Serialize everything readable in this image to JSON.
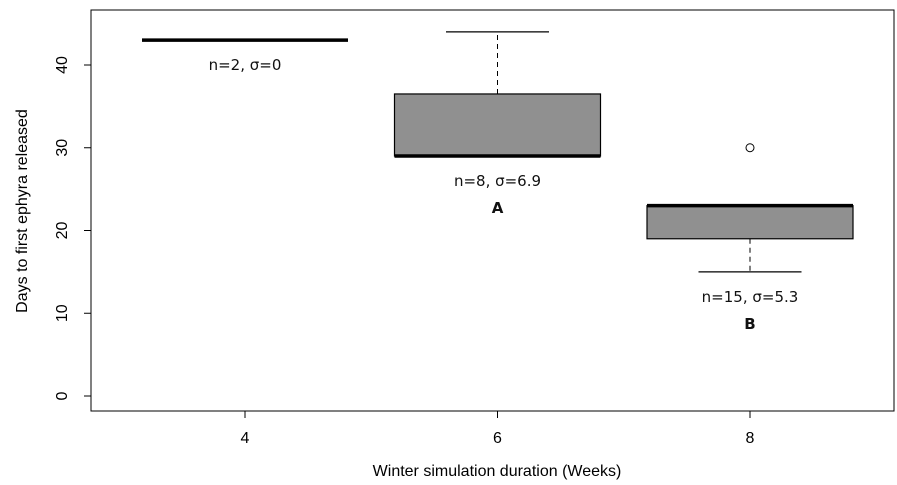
{
  "chart_data": {
    "type": "box",
    "title": "",
    "xlabel": "Winter simulation duration (Weeks)",
    "ylabel": "Days to first ephyra released",
    "ylim": [
      -2,
      47
    ],
    "yticks": [
      0,
      10,
      20,
      30,
      40
    ],
    "categories": [
      "4",
      "6",
      "8"
    ],
    "boxes": [
      {
        "category": "4",
        "min": 43,
        "q1": 43,
        "median": 43,
        "q3": 43,
        "max": 43,
        "outliers": [],
        "annotation": "n=2, σ=0",
        "letter": ""
      },
      {
        "category": "6",
        "min": 29,
        "q1": 29,
        "median": 29,
        "q3": 36.5,
        "max": 44,
        "outliers": [],
        "annotation": "n=8, σ=6.9",
        "letter": "A"
      },
      {
        "category": "8",
        "min": 15,
        "q1": 19,
        "median": 23,
        "q3": 23,
        "max": 23,
        "outliers": [
          30
        ],
        "annotation": "n=15, σ=5.3",
        "letter": "B"
      }
    ],
    "box_fill": "#909090",
    "grid": false,
    "legend": "none"
  }
}
